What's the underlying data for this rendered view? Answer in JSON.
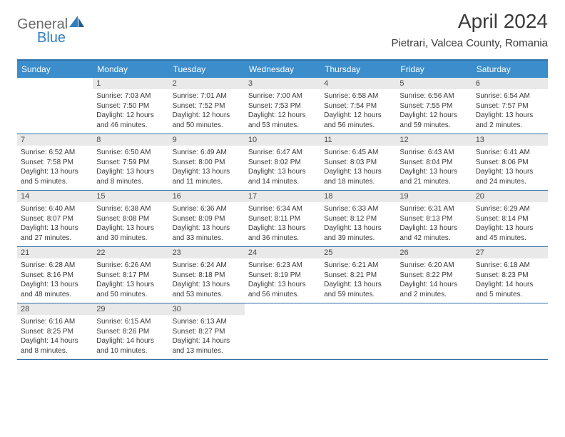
{
  "brand": {
    "part1": "General",
    "part2": "Blue"
  },
  "title": "April 2024",
  "location": "Pietrari, Valcea County, Romania",
  "colors": {
    "header_bg": "#3c8dcc",
    "border": "#2f6fa8",
    "daynum_bg": "#e9e9e9",
    "text": "#3a3a3a",
    "brand_blue": "#2f7ec2",
    "brand_gray": "#6b6b6b"
  },
  "typography": {
    "title_fontsize": 28,
    "location_fontsize": 15,
    "dow_fontsize": 12,
    "body_fontsize": 10
  },
  "days_of_week": [
    "Sunday",
    "Monday",
    "Tuesday",
    "Wednesday",
    "Thursday",
    "Friday",
    "Saturday"
  ],
  "weeks": [
    [
      {
        "n": "",
        "sunrise": "",
        "sunset": "",
        "daylight": ""
      },
      {
        "n": "1",
        "sunrise": "Sunrise: 7:03 AM",
        "sunset": "Sunset: 7:50 PM",
        "daylight": "Daylight: 12 hours and 46 minutes."
      },
      {
        "n": "2",
        "sunrise": "Sunrise: 7:01 AM",
        "sunset": "Sunset: 7:52 PM",
        "daylight": "Daylight: 12 hours and 50 minutes."
      },
      {
        "n": "3",
        "sunrise": "Sunrise: 7:00 AM",
        "sunset": "Sunset: 7:53 PM",
        "daylight": "Daylight: 12 hours and 53 minutes."
      },
      {
        "n": "4",
        "sunrise": "Sunrise: 6:58 AM",
        "sunset": "Sunset: 7:54 PM",
        "daylight": "Daylight: 12 hours and 56 minutes."
      },
      {
        "n": "5",
        "sunrise": "Sunrise: 6:56 AM",
        "sunset": "Sunset: 7:55 PM",
        "daylight": "Daylight: 12 hours and 59 minutes."
      },
      {
        "n": "6",
        "sunrise": "Sunrise: 6:54 AM",
        "sunset": "Sunset: 7:57 PM",
        "daylight": "Daylight: 13 hours and 2 minutes."
      }
    ],
    [
      {
        "n": "7",
        "sunrise": "Sunrise: 6:52 AM",
        "sunset": "Sunset: 7:58 PM",
        "daylight": "Daylight: 13 hours and 5 minutes."
      },
      {
        "n": "8",
        "sunrise": "Sunrise: 6:50 AM",
        "sunset": "Sunset: 7:59 PM",
        "daylight": "Daylight: 13 hours and 8 minutes."
      },
      {
        "n": "9",
        "sunrise": "Sunrise: 6:49 AM",
        "sunset": "Sunset: 8:00 PM",
        "daylight": "Daylight: 13 hours and 11 minutes."
      },
      {
        "n": "10",
        "sunrise": "Sunrise: 6:47 AM",
        "sunset": "Sunset: 8:02 PM",
        "daylight": "Daylight: 13 hours and 14 minutes."
      },
      {
        "n": "11",
        "sunrise": "Sunrise: 6:45 AM",
        "sunset": "Sunset: 8:03 PM",
        "daylight": "Daylight: 13 hours and 18 minutes."
      },
      {
        "n": "12",
        "sunrise": "Sunrise: 6:43 AM",
        "sunset": "Sunset: 8:04 PM",
        "daylight": "Daylight: 13 hours and 21 minutes."
      },
      {
        "n": "13",
        "sunrise": "Sunrise: 6:41 AM",
        "sunset": "Sunset: 8:06 PM",
        "daylight": "Daylight: 13 hours and 24 minutes."
      }
    ],
    [
      {
        "n": "14",
        "sunrise": "Sunrise: 6:40 AM",
        "sunset": "Sunset: 8:07 PM",
        "daylight": "Daylight: 13 hours and 27 minutes."
      },
      {
        "n": "15",
        "sunrise": "Sunrise: 6:38 AM",
        "sunset": "Sunset: 8:08 PM",
        "daylight": "Daylight: 13 hours and 30 minutes."
      },
      {
        "n": "16",
        "sunrise": "Sunrise: 6:36 AM",
        "sunset": "Sunset: 8:09 PM",
        "daylight": "Daylight: 13 hours and 33 minutes."
      },
      {
        "n": "17",
        "sunrise": "Sunrise: 6:34 AM",
        "sunset": "Sunset: 8:11 PM",
        "daylight": "Daylight: 13 hours and 36 minutes."
      },
      {
        "n": "18",
        "sunrise": "Sunrise: 6:33 AM",
        "sunset": "Sunset: 8:12 PM",
        "daylight": "Daylight: 13 hours and 39 minutes."
      },
      {
        "n": "19",
        "sunrise": "Sunrise: 6:31 AM",
        "sunset": "Sunset: 8:13 PM",
        "daylight": "Daylight: 13 hours and 42 minutes."
      },
      {
        "n": "20",
        "sunrise": "Sunrise: 6:29 AM",
        "sunset": "Sunset: 8:14 PM",
        "daylight": "Daylight: 13 hours and 45 minutes."
      }
    ],
    [
      {
        "n": "21",
        "sunrise": "Sunrise: 6:28 AM",
        "sunset": "Sunset: 8:16 PM",
        "daylight": "Daylight: 13 hours and 48 minutes."
      },
      {
        "n": "22",
        "sunrise": "Sunrise: 6:26 AM",
        "sunset": "Sunset: 8:17 PM",
        "daylight": "Daylight: 13 hours and 50 minutes."
      },
      {
        "n": "23",
        "sunrise": "Sunrise: 6:24 AM",
        "sunset": "Sunset: 8:18 PM",
        "daylight": "Daylight: 13 hours and 53 minutes."
      },
      {
        "n": "24",
        "sunrise": "Sunrise: 6:23 AM",
        "sunset": "Sunset: 8:19 PM",
        "daylight": "Daylight: 13 hours and 56 minutes."
      },
      {
        "n": "25",
        "sunrise": "Sunrise: 6:21 AM",
        "sunset": "Sunset: 8:21 PM",
        "daylight": "Daylight: 13 hours and 59 minutes."
      },
      {
        "n": "26",
        "sunrise": "Sunrise: 6:20 AM",
        "sunset": "Sunset: 8:22 PM",
        "daylight": "Daylight: 14 hours and 2 minutes."
      },
      {
        "n": "27",
        "sunrise": "Sunrise: 6:18 AM",
        "sunset": "Sunset: 8:23 PM",
        "daylight": "Daylight: 14 hours and 5 minutes."
      }
    ],
    [
      {
        "n": "28",
        "sunrise": "Sunrise: 6:16 AM",
        "sunset": "Sunset: 8:25 PM",
        "daylight": "Daylight: 14 hours and 8 minutes."
      },
      {
        "n": "29",
        "sunrise": "Sunrise: 6:15 AM",
        "sunset": "Sunset: 8:26 PM",
        "daylight": "Daylight: 14 hours and 10 minutes."
      },
      {
        "n": "30",
        "sunrise": "Sunrise: 6:13 AM",
        "sunset": "Sunset: 8:27 PM",
        "daylight": "Daylight: 14 hours and 13 minutes."
      },
      {
        "n": "",
        "sunrise": "",
        "sunset": "",
        "daylight": ""
      },
      {
        "n": "",
        "sunrise": "",
        "sunset": "",
        "daylight": ""
      },
      {
        "n": "",
        "sunrise": "",
        "sunset": "",
        "daylight": ""
      },
      {
        "n": "",
        "sunrise": "",
        "sunset": "",
        "daylight": ""
      }
    ]
  ]
}
